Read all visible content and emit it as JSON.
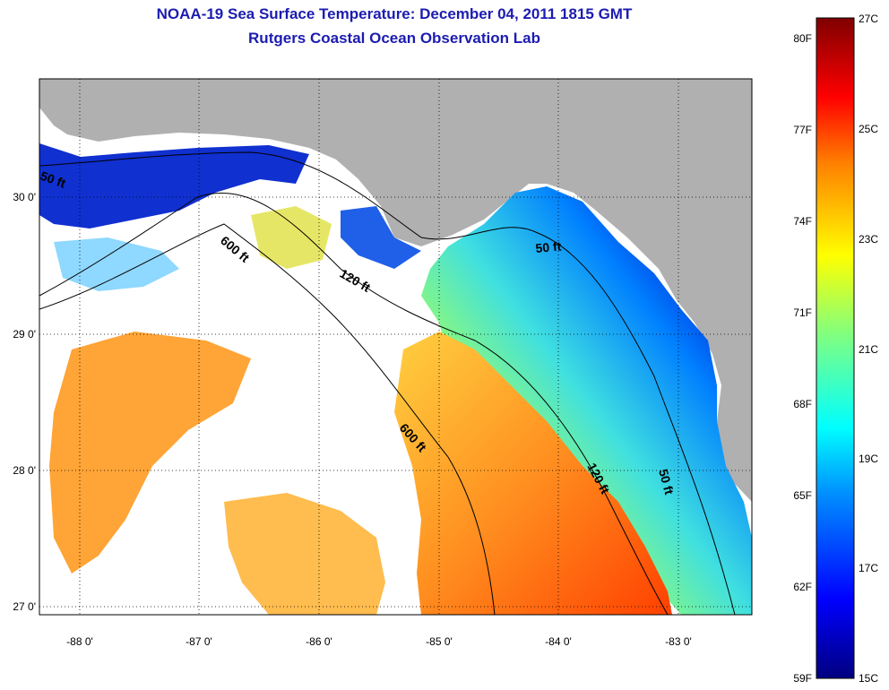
{
  "header": {
    "title": "NOAA-19 Sea Surface Temperature:  December 04, 2011 1815 GMT",
    "subtitle": "Rutgers Coastal Ocean Observation Lab"
  },
  "map": {
    "longitude_ticks": [
      "-88 0'",
      "-87 0'",
      "-86 0'",
      "-85 0'",
      "-84 0'",
      "-83 0'"
    ],
    "latitude_ticks": [
      "30 0'",
      "29 0'",
      "28 0'",
      "27 0'"
    ],
    "longitude_range": [
      -88.33,
      -82.4
    ],
    "latitude_range": [
      26.97,
      30.87
    ],
    "grid": "dotted",
    "land_color": "#b0b0b0",
    "cloud_color": "#ffffff",
    "depth_contours": [
      {
        "label": "50 ft",
        "placements": [
          "west",
          "east",
          "florida"
        ]
      },
      {
        "label": "120 ft",
        "placements": [
          "mid",
          "south"
        ]
      },
      {
        "label": "600 ft",
        "placements": [
          "north",
          "south"
        ]
      }
    ]
  },
  "colorbar": {
    "fahrenheit_labels": [
      "80F",
      "77F",
      "74F",
      "71F",
      "68F",
      "65F",
      "62F",
      "59F"
    ],
    "celsius_labels": [
      "27C",
      "25C",
      "23C",
      "21C",
      "19C",
      "17C",
      "15C"
    ],
    "range_celsius": [
      15,
      27
    ],
    "colors": [
      "#000080",
      "#0000ff",
      "#00a0ff",
      "#00ffff",
      "#80ff80",
      "#ffff00",
      "#ff8000",
      "#ff0000",
      "#800000"
    ]
  }
}
